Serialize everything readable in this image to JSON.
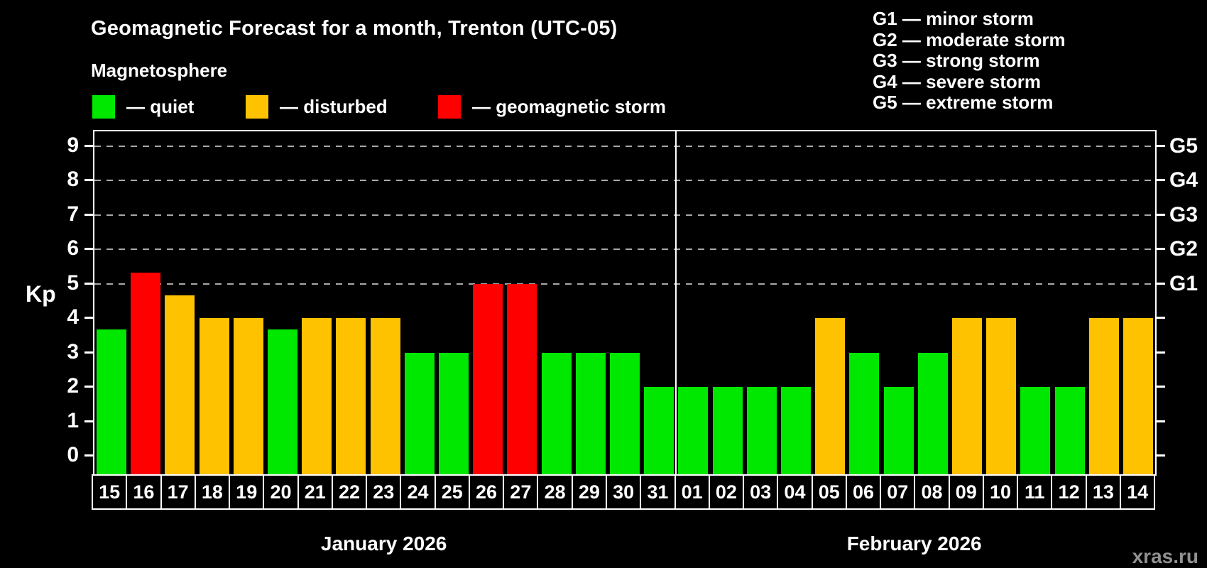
{
  "header": {
    "title": "Geomagnetic Forecast for a month, Trenton (UTC-05)",
    "subtitle": "Magnetosphere",
    "legend": [
      {
        "state": "quiet",
        "label": "— quiet"
      },
      {
        "state": "disturbed",
        "label": "— disturbed"
      },
      {
        "state": "storm",
        "label": "— geomagnetic storm"
      }
    ],
    "g_legend": [
      "G1 — minor storm",
      "G2 — moderate storm",
      "G3 — strong storm",
      "G4 — severe storm",
      "G5 — extreme storm"
    ]
  },
  "chart_data": {
    "type": "bar",
    "title": "Geomagnetic Forecast for a month, Trenton (UTC-05)",
    "ylabel": "Kp",
    "ylim": [
      0,
      9
    ],
    "y_ticks": [
      0,
      1,
      2,
      3,
      4,
      5,
      6,
      7,
      8,
      9
    ],
    "right_ticks": [
      {
        "label": "G1",
        "kp": 5
      },
      {
        "label": "G2",
        "kp": 6
      },
      {
        "label": "G3",
        "kp": 7
      },
      {
        "label": "G4",
        "kp": 8
      },
      {
        "label": "G5",
        "kp": 9
      }
    ],
    "gridlines_kp": [
      5,
      6,
      7,
      8,
      9
    ],
    "legend_position": "top",
    "colors": {
      "quiet": "#00e800",
      "disturbed": "#ffc200",
      "storm": "#fe0000"
    },
    "months": [
      {
        "label": "January 2026",
        "days": [
          {
            "d": "15",
            "kp": 3.67,
            "state": "quiet"
          },
          {
            "d": "16",
            "kp": 5.33,
            "state": "storm"
          },
          {
            "d": "17",
            "kp": 4.67,
            "state": "disturbed"
          },
          {
            "d": "18",
            "kp": 4,
            "state": "disturbed"
          },
          {
            "d": "19",
            "kp": 4,
            "state": "disturbed"
          },
          {
            "d": "20",
            "kp": 3.67,
            "state": "quiet"
          },
          {
            "d": "21",
            "kp": 4,
            "state": "disturbed"
          },
          {
            "d": "22",
            "kp": 4,
            "state": "disturbed"
          },
          {
            "d": "23",
            "kp": 4,
            "state": "disturbed"
          },
          {
            "d": "24",
            "kp": 3,
            "state": "quiet"
          },
          {
            "d": "25",
            "kp": 3,
            "state": "quiet"
          },
          {
            "d": "26",
            "kp": 5,
            "state": "storm"
          },
          {
            "d": "27",
            "kp": 5,
            "state": "storm"
          },
          {
            "d": "28",
            "kp": 3,
            "state": "quiet"
          },
          {
            "d": "29",
            "kp": 3,
            "state": "quiet"
          },
          {
            "d": "30",
            "kp": 3,
            "state": "quiet"
          },
          {
            "d": "31",
            "kp": 2,
            "state": "quiet"
          }
        ]
      },
      {
        "label": "February 2026",
        "days": [
          {
            "d": "01",
            "kp": 2,
            "state": "quiet"
          },
          {
            "d": "02",
            "kp": 2,
            "state": "quiet"
          },
          {
            "d": "03",
            "kp": 2,
            "state": "quiet"
          },
          {
            "d": "04",
            "kp": 2,
            "state": "quiet"
          },
          {
            "d": "05",
            "kp": 4,
            "state": "disturbed"
          },
          {
            "d": "06",
            "kp": 3,
            "state": "quiet"
          },
          {
            "d": "07",
            "kp": 2,
            "state": "quiet"
          },
          {
            "d": "08",
            "kp": 3,
            "state": "quiet"
          },
          {
            "d": "09",
            "kp": 4,
            "state": "disturbed"
          },
          {
            "d": "10",
            "kp": 4,
            "state": "disturbed"
          },
          {
            "d": "11",
            "kp": 2,
            "state": "quiet"
          },
          {
            "d": "12",
            "kp": 2,
            "state": "quiet"
          },
          {
            "d": "13",
            "kp": 4,
            "state": "disturbed"
          },
          {
            "d": "14",
            "kp": 4,
            "state": "disturbed"
          }
        ]
      }
    ]
  },
  "watermark": "xras.ru"
}
